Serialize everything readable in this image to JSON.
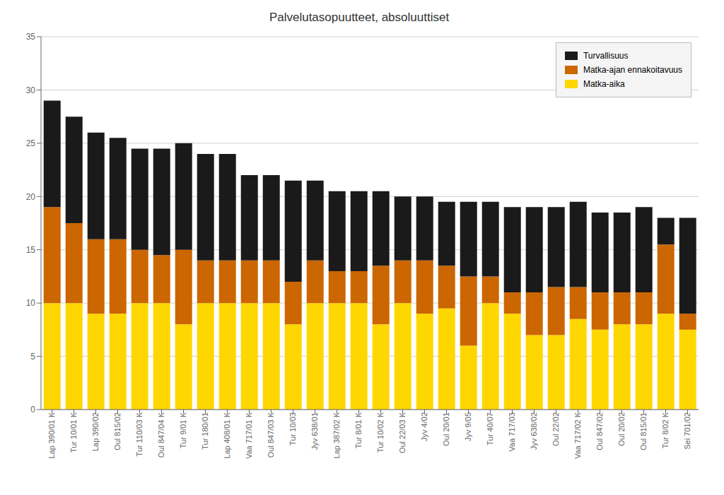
{
  "chart_data": {
    "type": "bar",
    "title": "Palvelutasopuutteet, absoluuttiset",
    "categories": [
      "Lap 390/01 K",
      "Tur 10/01 K",
      "Lap 390/02",
      "Oul 815/02",
      "Tur 110/03 K",
      "Oul 847/04 K",
      "Tur 9/01 K",
      "Tur 180/01",
      "Lap 408/01 K",
      "Vaa 717/01 K",
      "Oul 847/03 K",
      "Tur 10/03",
      "Jyv 638/01",
      "Lap 387/02 K",
      "Tur 8/01 K",
      "Tur 10/02 K",
      "Oul 22/03 K",
      "Jyv 4/02",
      "Oul 20/01",
      "Jyv 9/05",
      "Tur 40/07",
      "Vaa 717/03",
      "Jyv 638/02",
      "Oul 22/02",
      "Vaa 717/02 K",
      "Oul 847/02",
      "Oul 20/02",
      "Oul 815/01",
      "Tur 8/02 K",
      "Sei 701/02"
    ],
    "series": [
      {
        "name": "Matka-aika",
        "color": "#FFD700",
        "values": [
          10.0,
          10.0,
          9.0,
          9.0,
          10.0,
          10.0,
          8.0,
          10.0,
          10.0,
          10.0,
          10.0,
          8.0,
          10.0,
          10.0,
          10.0,
          8.0,
          10.0,
          9.0,
          9.5,
          6.0,
          10.0,
          9.0,
          7.0,
          7.0,
          8.5,
          7.5,
          8.0,
          8.0,
          9.0,
          7.5
        ]
      },
      {
        "name": "Matka-ajan ennakoitavuus",
        "color": "#CC6600",
        "values": [
          9.0,
          7.5,
          7.0,
          7.0,
          5.0,
          4.5,
          7.0,
          4.0,
          4.0,
          4.0,
          4.0,
          4.0,
          4.0,
          3.0,
          3.0,
          5.5,
          4.0,
          5.0,
          4.0,
          6.5,
          2.5,
          2.0,
          4.0,
          4.5,
          3.0,
          3.5,
          3.0,
          3.0,
          6.5,
          1.5
        ]
      },
      {
        "name": "Turvallisuus",
        "color": "#1a1a1a",
        "values": [
          10.0,
          10.0,
          10.0,
          9.5,
          9.5,
          10.0,
          10.0,
          10.0,
          10.0,
          8.0,
          8.0,
          9.5,
          7.5,
          7.5,
          7.5,
          7.0,
          6.0,
          6.0,
          6.0,
          7.0,
          7.0,
          8.0,
          8.0,
          7.5,
          8.0,
          7.5,
          7.5,
          8.0,
          2.5,
          9.0
        ]
      }
    ],
    "stacked": true,
    "ylim": [
      0,
      35
    ],
    "yticks": [
      0,
      5,
      10,
      15,
      20,
      25,
      30,
      35
    ],
    "grid": true,
    "legend": "upper right"
  }
}
